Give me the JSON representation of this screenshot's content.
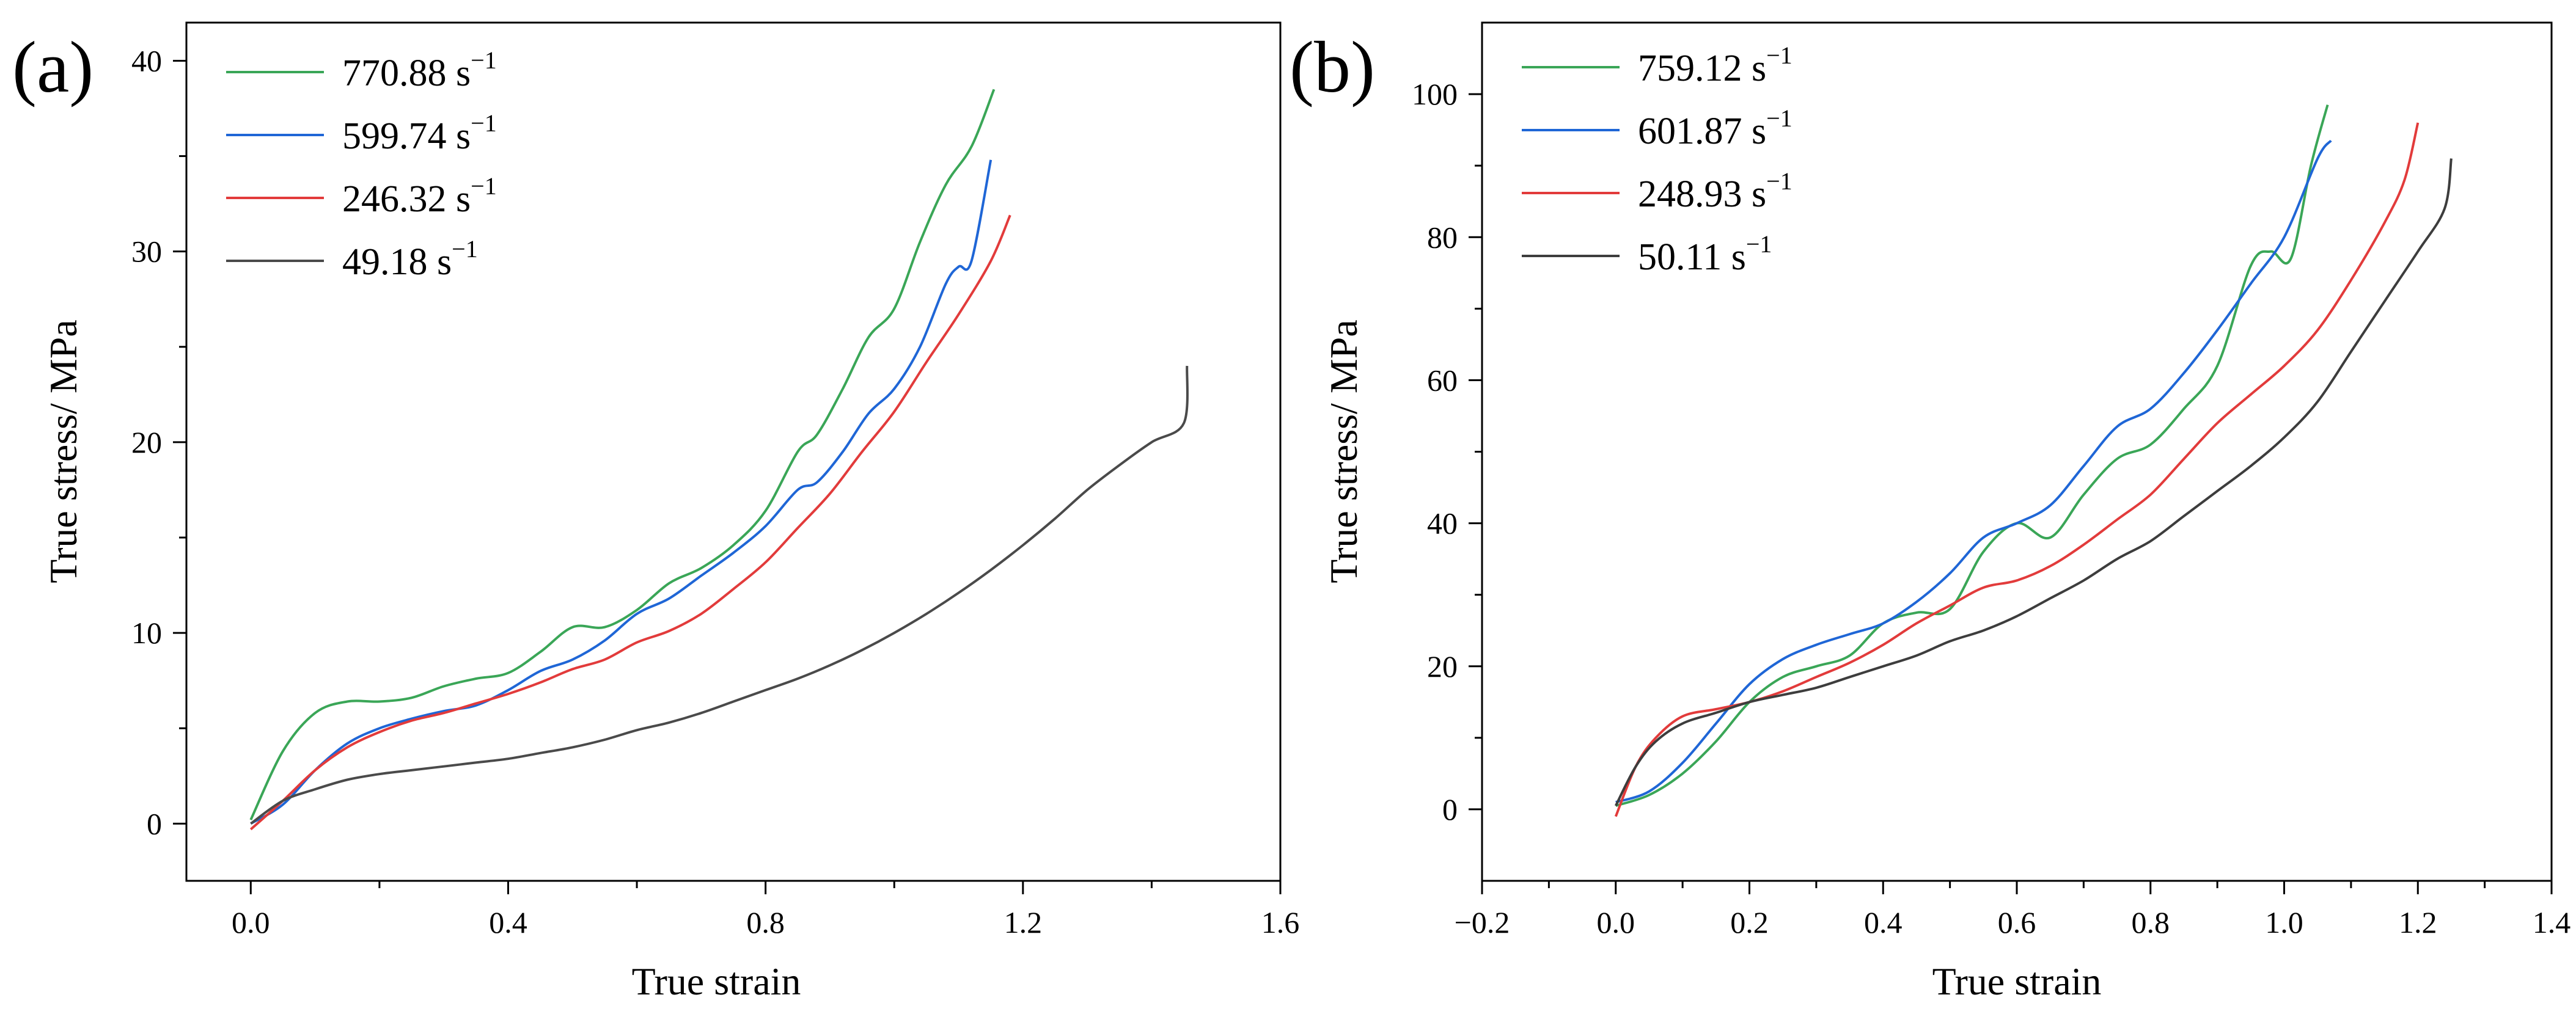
{
  "chart_data": [
    {
      "type": "line",
      "panel_label": "(a)",
      "xlabel": "True strain",
      "ylabel": "True stress/ MPa",
      "xlim": [
        -0.1,
        1.6
      ],
      "ylim": [
        -3,
        42
      ],
      "xticks": [
        0.0,
        0.4,
        0.8,
        1.2,
        1.6
      ],
      "xtick_labels": [
        "0.0",
        "0.4",
        "0.8",
        "1.2",
        "1.6"
      ],
      "yticks": [
        0,
        10,
        20,
        30,
        40
      ],
      "ytick_labels": [
        "0",
        "10",
        "20",
        "30",
        "40"
      ],
      "legend_position": "top-left",
      "series": [
        {
          "name": "770.88",
          "unit": "s",
          "unit_exp": "−1",
          "color": "#3aa657",
          "x": [
            0.0,
            0.05,
            0.1,
            0.15,
            0.2,
            0.25,
            0.3,
            0.35,
            0.4,
            0.45,
            0.5,
            0.55,
            0.6,
            0.65,
            0.7,
            0.75,
            0.8,
            0.85,
            0.88,
            0.92,
            0.96,
            1.0,
            1.04,
            1.08,
            1.12,
            1.155
          ],
          "y": [
            0.2,
            3.8,
            5.8,
            6.4,
            6.4,
            6.6,
            7.2,
            7.6,
            7.9,
            9.0,
            10.3,
            10.3,
            11.2,
            12.6,
            13.4,
            14.6,
            16.4,
            19.5,
            20.4,
            22.8,
            25.5,
            27.0,
            30.5,
            33.5,
            35.5,
            38.5
          ]
        },
        {
          "name": "599.74",
          "unit": "s",
          "unit_exp": "−1",
          "color": "#1f66d6",
          "x": [
            0.0,
            0.05,
            0.1,
            0.15,
            0.2,
            0.25,
            0.3,
            0.35,
            0.4,
            0.45,
            0.5,
            0.55,
            0.6,
            0.65,
            0.7,
            0.75,
            0.8,
            0.85,
            0.88,
            0.92,
            0.96,
            1.0,
            1.04,
            1.08,
            1.1,
            1.12,
            1.15
          ],
          "y": [
            0.0,
            1.0,
            2.8,
            4.2,
            5.0,
            5.5,
            5.9,
            6.2,
            7.0,
            8.0,
            8.6,
            9.6,
            11.0,
            11.8,
            13.0,
            14.2,
            15.6,
            17.5,
            17.9,
            19.5,
            21.5,
            22.8,
            25.0,
            28.3,
            29.2,
            29.5,
            34.8
          ]
        },
        {
          "name": "246.32",
          "unit": "s",
          "unit_exp": "−1",
          "color": "#e23b3b",
          "x": [
            0.0,
            0.05,
            0.1,
            0.15,
            0.2,
            0.25,
            0.3,
            0.35,
            0.4,
            0.45,
            0.5,
            0.55,
            0.6,
            0.65,
            0.7,
            0.75,
            0.8,
            0.85,
            0.9,
            0.95,
            1.0,
            1.05,
            1.1,
            1.15,
            1.18
          ],
          "y": [
            -0.3,
            1.2,
            2.8,
            4.0,
            4.8,
            5.4,
            5.8,
            6.3,
            6.8,
            7.4,
            8.1,
            8.6,
            9.5,
            10.1,
            11.0,
            12.3,
            13.7,
            15.5,
            17.3,
            19.5,
            21.6,
            24.2,
            26.7,
            29.5,
            31.9
          ]
        },
        {
          "name": "49.18",
          "unit": "s",
          "unit_exp": "−1",
          "color": "#4a4a4a",
          "x": [
            0.0,
            0.05,
            0.1,
            0.15,
            0.2,
            0.25,
            0.3,
            0.35,
            0.4,
            0.45,
            0.5,
            0.55,
            0.6,
            0.65,
            0.7,
            0.75,
            0.8,
            0.85,
            0.9,
            0.95,
            1.0,
            1.05,
            1.1,
            1.15,
            1.2,
            1.25,
            1.3,
            1.35,
            1.4,
            1.45,
            1.455
          ],
          "y": [
            0.0,
            1.2,
            1.8,
            2.3,
            2.6,
            2.8,
            3.0,
            3.2,
            3.4,
            3.7,
            4.0,
            4.4,
            4.9,
            5.3,
            5.8,
            6.4,
            7.0,
            7.6,
            8.3,
            9.1,
            10.0,
            11.0,
            12.1,
            13.3,
            14.6,
            16.0,
            17.5,
            18.8,
            20.0,
            21.0,
            24.0
          ]
        }
      ]
    },
    {
      "type": "line",
      "panel_label": "(b)",
      "xlabel": "True strain",
      "ylabel": "True stress/ MPa",
      "xlim": [
        -0.2,
        1.4
      ],
      "ylim": [
        -10,
        110
      ],
      "xticks": [
        -0.2,
        0.0,
        0.2,
        0.4,
        0.6,
        0.8,
        1.0,
        1.2,
        1.4
      ],
      "xtick_labels": [
        "−0.2",
        "0.0",
        "0.2",
        "0.4",
        "0.6",
        "0.8",
        "1.0",
        "1.2",
        "1.4"
      ],
      "yticks": [
        0,
        20,
        40,
        60,
        80,
        100
      ],
      "ytick_labels": [
        "0",
        "20",
        "40",
        "60",
        "80",
        "100"
      ],
      "legend_position": "top-left",
      "series": [
        {
          "name": "759.12",
          "unit": "s",
          "unit_exp": "−1",
          "color": "#3aa657",
          "x": [
            0.0,
            0.05,
            0.1,
            0.15,
            0.2,
            0.25,
            0.3,
            0.35,
            0.4,
            0.45,
            0.5,
            0.55,
            0.6,
            0.65,
            0.7,
            0.75,
            0.8,
            0.85,
            0.9,
            0.95,
            0.98,
            1.01,
            1.04,
            1.065
          ],
          "y": [
            0.5,
            2.0,
            5.0,
            9.5,
            15.0,
            18.5,
            20.0,
            21.5,
            26.0,
            27.5,
            28.0,
            36.0,
            40.0,
            38.0,
            44.0,
            49.0,
            51.0,
            56.0,
            62.0,
            76.0,
            78.0,
            77.0,
            90.0,
            98.5
          ]
        },
        {
          "name": "601.87",
          "unit": "s",
          "unit_exp": "−1",
          "color": "#1f66d6",
          "x": [
            0.0,
            0.05,
            0.1,
            0.15,
            0.2,
            0.25,
            0.3,
            0.35,
            0.4,
            0.45,
            0.5,
            0.55,
            0.6,
            0.65,
            0.7,
            0.75,
            0.8,
            0.85,
            0.9,
            0.95,
            1.0,
            1.05,
            1.07
          ],
          "y": [
            1.0,
            2.5,
            6.5,
            12.0,
            17.5,
            21.0,
            23.0,
            24.5,
            26.0,
            29.0,
            33.0,
            38.0,
            40.0,
            42.5,
            48.0,
            53.5,
            56.0,
            61.0,
            67.0,
            73.5,
            80.0,
            91.0,
            93.5
          ]
        },
        {
          "name": "248.93",
          "unit": "s",
          "unit_exp": "−1",
          "color": "#e23b3b",
          "x": [
            0.0,
            0.03,
            0.06,
            0.1,
            0.15,
            0.2,
            0.25,
            0.3,
            0.35,
            0.4,
            0.45,
            0.5,
            0.55,
            0.6,
            0.65,
            0.7,
            0.75,
            0.8,
            0.85,
            0.9,
            0.95,
            1.0,
            1.05,
            1.1,
            1.15,
            1.18,
            1.2
          ],
          "y": [
            -1.0,
            6.0,
            10.0,
            13.0,
            14.0,
            15.0,
            16.5,
            18.5,
            20.5,
            23.0,
            26.0,
            28.5,
            31.0,
            32.0,
            34.0,
            37.0,
            40.5,
            44.0,
            49.0,
            54.0,
            58.0,
            62.0,
            67.0,
            74.0,
            82.0,
            88.0,
            96.0
          ]
        },
        {
          "name": "50.11",
          "unit": "s",
          "unit_exp": "−1",
          "color": "#3d3d3d",
          "x": [
            0.0,
            0.03,
            0.06,
            0.1,
            0.15,
            0.2,
            0.25,
            0.3,
            0.35,
            0.4,
            0.45,
            0.5,
            0.55,
            0.6,
            0.65,
            0.7,
            0.75,
            0.8,
            0.85,
            0.9,
            0.95,
            1.0,
            1.05,
            1.1,
            1.15,
            1.2,
            1.24,
            1.25
          ],
          "y": [
            0.5,
            6.0,
            9.5,
            12.0,
            13.5,
            15.0,
            16.0,
            17.0,
            18.5,
            20.0,
            21.5,
            23.5,
            25.0,
            27.0,
            29.5,
            32.0,
            35.0,
            37.5,
            41.0,
            44.5,
            48.0,
            52.0,
            57.0,
            64.0,
            71.0,
            78.0,
            84.0,
            91.0
          ]
        }
      ]
    }
  ]
}
